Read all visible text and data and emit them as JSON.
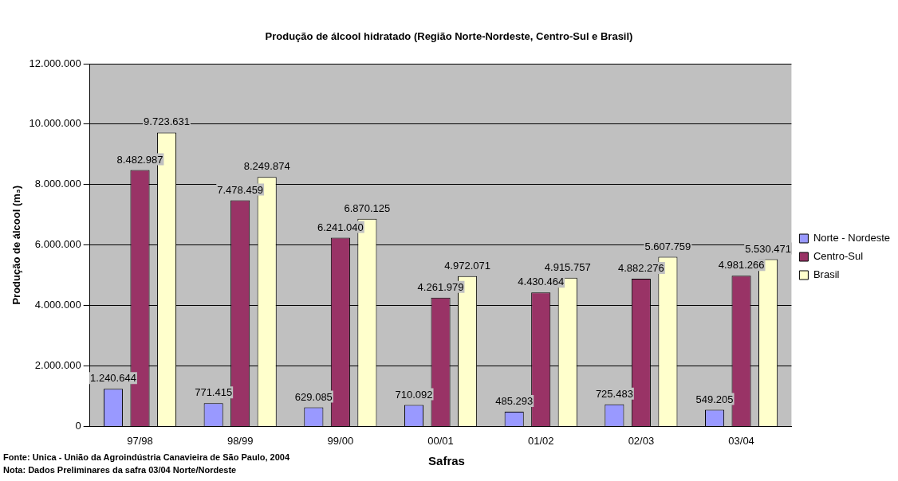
{
  "chart_data": {
    "type": "bar",
    "title": "Produção de álcool hidratado (Região Norte-Nordeste, Centro-Sul e Brasil)",
    "xlabel": "Safras",
    "ylabel": "Produção de álcool (m₃)",
    "categories": [
      "97/98",
      "98/99",
      "99/00",
      "00/01",
      "01/02",
      "02/03",
      "03/04"
    ],
    "series": [
      {
        "name": "Norte - Nordeste",
        "color": "#9999ff",
        "values": [
          1240644,
          771415,
          629085,
          710092,
          485293,
          725483,
          549205
        ],
        "value_labels": [
          "1.240.644",
          "771.415",
          "629.085",
          "710.092",
          "485.293",
          "725.483",
          "549.205"
        ]
      },
      {
        "name": "Centro-Sul",
        "color": "#993366",
        "values": [
          8482987,
          7478459,
          6241040,
          4261979,
          4430464,
          4882276,
          4981266
        ],
        "value_labels": [
          "8.482.987",
          "7.478.459",
          "6.241.040",
          "4.261.979",
          "4.430.464",
          "4.882.276",
          "4.981.266"
        ]
      },
      {
        "name": "Brasil",
        "color": "#ffffcc",
        "values": [
          9723631,
          8249874,
          6870125,
          4972071,
          4915757,
          5607759,
          5530471
        ],
        "value_labels": [
          "9.723.631",
          "8.249.874",
          "6.870.125",
          "4.972.071",
          "4.915.757",
          "5.607.759",
          "5.530.471"
        ]
      }
    ],
    "ylim": [
      0,
      12000000
    ],
    "yticks": [
      {
        "value": 0,
        "label": "0"
      },
      {
        "value": 2000000,
        "label": "2.000.000"
      },
      {
        "value": 4000000,
        "label": "4.000.000"
      },
      {
        "value": 6000000,
        "label": "6.000.000"
      },
      {
        "value": 8000000,
        "label": "8.000.000"
      },
      {
        "value": 10000000,
        "label": "10.000.000"
      },
      {
        "value": 12000000,
        "label": "12.000.000"
      }
    ],
    "grid": "y",
    "legend": "right",
    "annotations": [
      "Fonte: Unica - União da Agroindústria Canavieira de São Paulo, 2004",
      "Nota: Dados Preliminares da safra 03/04 Norte/Nordeste"
    ]
  }
}
